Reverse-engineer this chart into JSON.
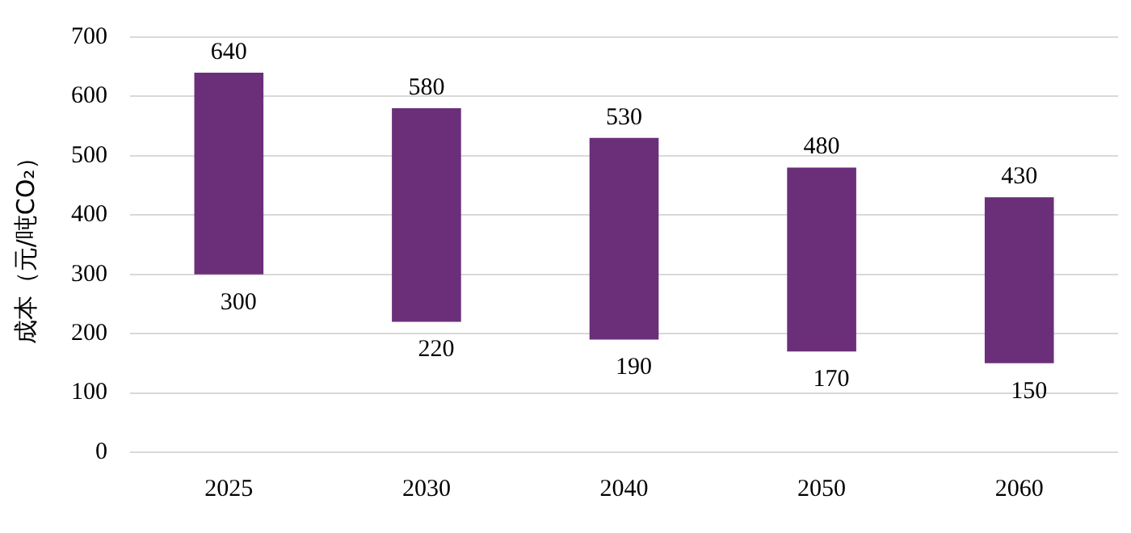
{
  "chart_data": {
    "type": "bar",
    "ylabel": "成本（元/吨CO₂）",
    "categories": [
      "2025",
      "2030",
      "2040",
      "2050",
      "2060"
    ],
    "base": [
      300,
      220,
      190,
      170,
      150
    ],
    "values": [
      340,
      360,
      340,
      310,
      280
    ],
    "color": "#6b2f7a",
    "ylim": [
      0,
      700
    ],
    "yticks": [
      0,
      100,
      200,
      300,
      400,
      500,
      600,
      700
    ],
    "grid": "y",
    "legend": false,
    "annotations": [
      {
        "text": "640",
        "x": "2025",
        "y": 640
      },
      {
        "text": "300",
        "x": "2025",
        "y": 300
      },
      {
        "text": "580",
        "x": "2030",
        "y": 580
      },
      {
        "text": "220",
        "x": "2030",
        "y": 220
      },
      {
        "text": "530",
        "x": "2040",
        "y": 530
      },
      {
        "text": "190",
        "x": "2040",
        "y": 190
      },
      {
        "text": "480",
        "x": "2050",
        "y": 480
      },
      {
        "text": "170",
        "x": "2050",
        "y": 170
      },
      {
        "text": "430",
        "x": "2060",
        "y": 430
      },
      {
        "text": "150",
        "x": "2060",
        "y": 150
      }
    ]
  }
}
